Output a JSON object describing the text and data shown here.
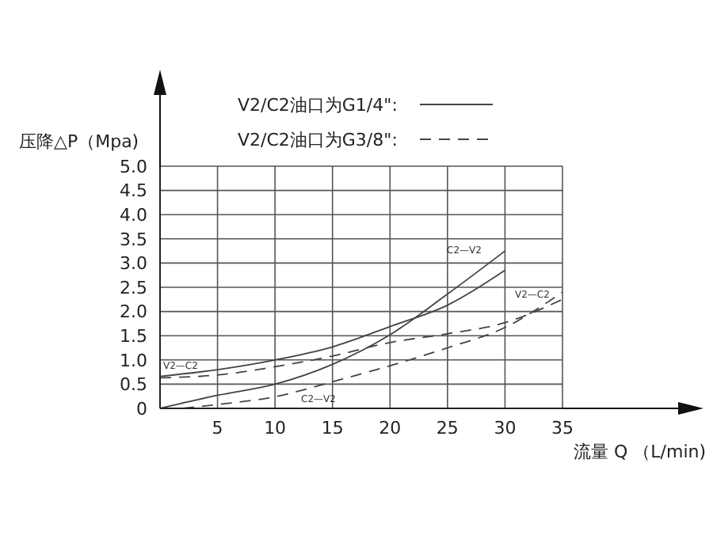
{
  "chart_data": {
    "type": "line",
    "xlabel": "流量 Q （L/min)",
    "ylabel": "压降△P（Mpa)",
    "xlim": [
      0,
      35
    ],
    "xticks": [
      {
        "value": 0,
        "label": null
      },
      5,
      10,
      15,
      20,
      25,
      30,
      35
    ],
    "ylim": [
      0,
      5
    ],
    "yticks": [
      0,
      0.5,
      {
        "value": 1,
        "label": "1.0"
      },
      1.5,
      {
        "value": 2,
        "label": "2.0"
      },
      2.5,
      {
        "value": 3,
        "label": "3.0"
      },
      3.5,
      {
        "value": 4,
        "label": "4.0"
      },
      4.5,
      {
        "value": 5,
        "label": "5.0"
      }
    ],
    "grid": true,
    "legend": "top",
    "marker": "none",
    "series": [
      {
        "name": "V2/C2油口为G1/4\":",
        "color": "#444444",
        "line_style": "solid",
        "x": [
          0,
          5,
          10,
          15,
          20,
          25,
          30
        ],
        "values": [
          0.66,
          0.8,
          1.0,
          1.27,
          1.69,
          2.13,
          2.85
        ]
      },
      {
        "color": "#444444",
        "line_style": "solid",
        "x": [
          0,
          5,
          10,
          15,
          20,
          25,
          30
        ],
        "values": [
          0,
          0.27,
          0.5,
          0.91,
          1.52,
          2.36,
          3.25
        ]
      },
      {
        "name": "V2/C2油口为G3/8\":",
        "color": "#444444",
        "line_style": "dashed",
        "x": [
          0,
          5,
          10,
          15,
          20,
          25,
          30,
          35
        ],
        "values": [
          0.63,
          0.69,
          0.86,
          1.08,
          1.36,
          1.54,
          1.77,
          2.25
        ]
      },
      {
        "color": "#444444",
        "line_style": "dashed",
        "x": [
          2,
          5,
          10,
          15,
          20,
          25,
          30,
          35
        ],
        "values": [
          0,
          0.08,
          0.24,
          0.55,
          0.88,
          1.25,
          1.67,
          2.4
        ]
      }
    ],
    "annotations": [
      "C2—V2",
      "V2—C2",
      "V2—C2",
      "C2—V2"
    ]
  }
}
